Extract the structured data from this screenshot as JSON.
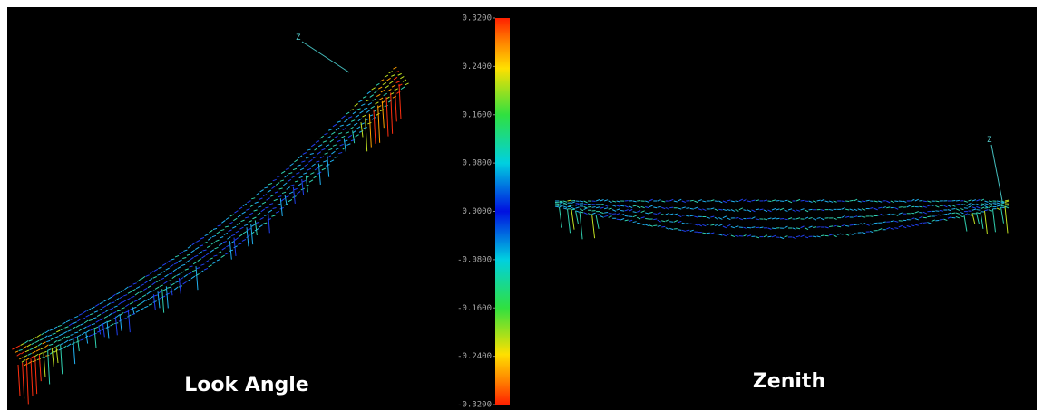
{
  "left_view": {
    "title": "Look Angle",
    "axis_label": "Z"
  },
  "right_view": {
    "title": "Zenith",
    "axis_label": "Z"
  },
  "colorbar": {
    "lim": [
      -0.32,
      0.32
    ],
    "ticks": [
      {
        "value": 0.32,
        "label": "0.3200"
      },
      {
        "value": 0.24,
        "label": "0.2400"
      },
      {
        "value": 0.16,
        "label": "0.1600"
      },
      {
        "value": 0.08,
        "label": "0.0800"
      },
      {
        "value": 0,
        "label": "0.0000"
      },
      {
        "value": -0.08,
        "label": "-0.0800"
      },
      {
        "value": -0.16,
        "label": "-0.1600"
      },
      {
        "value": -0.24,
        "label": "-0.2400"
      },
      {
        "value": -0.32,
        "label": "-0.3200"
      }
    ]
  }
}
